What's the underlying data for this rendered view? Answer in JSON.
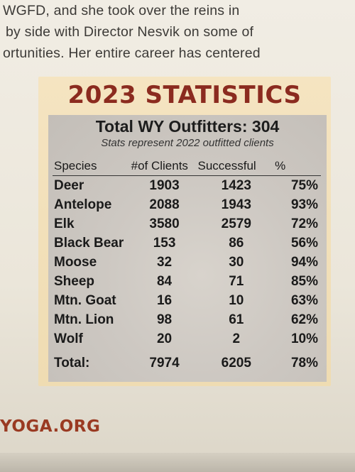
{
  "article": {
    "lines": [
      "WGFD, and she took over the reins in",
      "by side with Director Nesvik on some of",
      "ortunities. Her entire career has centered"
    ]
  },
  "sidebar": {
    "headline": "2023 STATISTICS",
    "subtitle": "Total WY Outfitters: 304",
    "note": "Stats represent 2022 outfitted clients",
    "columns": [
      "Species",
      "#of Clients",
      "Successful",
      "%"
    ],
    "rows": [
      {
        "species": "Deer",
        "clients": "1903",
        "successful": "1423",
        "pct": "75%"
      },
      {
        "species": "Antelope",
        "clients": "2088",
        "successful": "1943",
        "pct": "93%"
      },
      {
        "species": "Elk",
        "clients": "3580",
        "successful": "2579",
        "pct": "72%"
      },
      {
        "species": "Black Bear",
        "clients": "153",
        "successful": "86",
        "pct": "56%"
      },
      {
        "species": "Moose",
        "clients": "32",
        "successful": "30",
        "pct": "94%"
      },
      {
        "species": "Sheep",
        "clients": "84",
        "successful": "71",
        "pct": "85%"
      },
      {
        "species": "Mtn. Goat",
        "clients": "16",
        "successful": "10",
        "pct": "63%"
      },
      {
        "species": "Mtn. Lion",
        "clients": "98",
        "successful": "61",
        "pct": "62%"
      },
      {
        "species": "Wolf",
        "clients": "20",
        "successful": "2",
        "pct": "10%"
      }
    ],
    "total": {
      "label": "Total:",
      "clients": "7974",
      "successful": "6205",
      "pct": "78%"
    }
  },
  "footer": {
    "url": "YOGA.ORG"
  },
  "colors": {
    "headline": "#8b2b1f",
    "sidebar_bg": "#f2e0b8",
    "panel_bg": "#cfcac4",
    "footer_url": "#9a3a22"
  }
}
